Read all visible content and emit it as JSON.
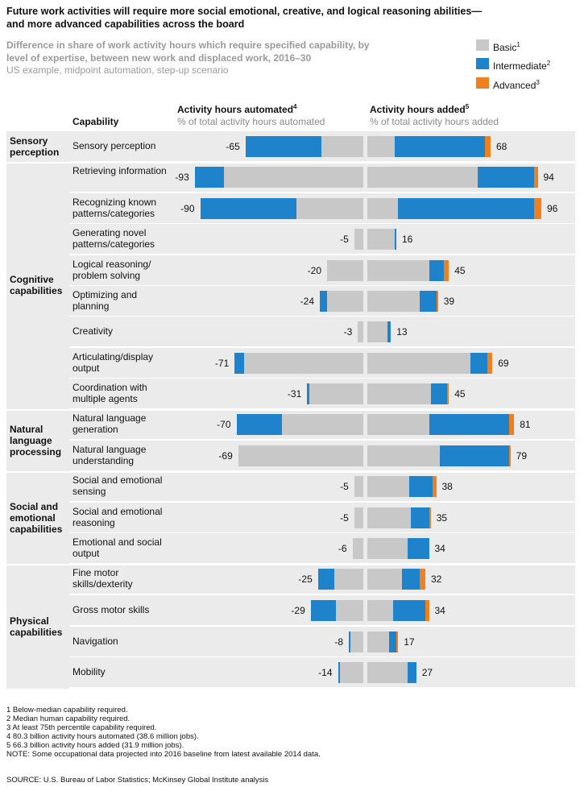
{
  "title": "Future work activities will require more social emotional, creative, and logical reasoning abilities— and more advanced capabilities across the board",
  "subtitle": "Difference in share of work activity hours which require specified capability, by level of expertise, between new work and displaced work, 2016–30",
  "subtitle_note": "US example, midpoint automation, step-up scenario",
  "legend": [
    {
      "name": "Basic",
      "sup": "1",
      "color": "#c8c8c8"
    },
    {
      "name": "Intermediate",
      "sup": "2",
      "color": "#1f83cc"
    },
    {
      "name": "Advanced",
      "sup": "3",
      "color": "#f0801e"
    }
  ],
  "headers": {
    "capability": "Capability",
    "automated": "Activity hours automated",
    "automated_sup": "4",
    "automated_sub": "% of total activity hours automated",
    "added": "Activity hours added",
    "added_sup": "5",
    "added_sub": "% of total activity hours added"
  },
  "categories": [
    {
      "name": "Sensory perception"
    },
    {
      "name": "Cognitive capabilities"
    },
    {
      "name": "Natural language processing"
    },
    {
      "name": "Social and emotional capabilities"
    },
    {
      "name": "Physical capabilities"
    }
  ],
  "chart_data": {
    "type": "bar",
    "orientation": "horizontal-diverging-stacked",
    "stack_order": [
      "Basic",
      "Intermediate",
      "Advanced"
    ],
    "rows": [
      {
        "category": "Sensory perception",
        "label": "Sensory perception",
        "automated": {
          "total": -65,
          "basic": -23,
          "intermediate": -42,
          "advanced": 0
        },
        "added": {
          "total": 68,
          "basic": 15,
          "intermediate": 50,
          "advanced": 3
        }
      },
      {
        "category": "Cognitive capabilities",
        "label": "Retrieving information",
        "automated": {
          "total": -93,
          "basic": -77,
          "intermediate": -16,
          "advanced": 0
        },
        "added": {
          "total": 94,
          "basic": 61,
          "intermediate": 31,
          "advanced": 2
        }
      },
      {
        "category": "Cognitive capabilities",
        "label": "Recognizing known patterns/categories",
        "automated": {
          "total": -90,
          "basic": -37,
          "intermediate": -53,
          "advanced": 0
        },
        "added": {
          "total": 96,
          "basic": 17,
          "intermediate": 75,
          "advanced": 4
        }
      },
      {
        "category": "Cognitive capabilities",
        "label": "Generating novel patterns/categories",
        "automated": {
          "total": -5,
          "basic": -5,
          "intermediate": 0,
          "advanced": 0
        },
        "added": {
          "total": 16,
          "basic": 15,
          "intermediate": 1,
          "advanced": 0
        }
      },
      {
        "category": "Cognitive capabilities",
        "label": "Logical reasoning/ problem solving",
        "automated": {
          "total": -20,
          "basic": -20,
          "intermediate": 0,
          "advanced": 0
        },
        "added": {
          "total": 45,
          "basic": 34,
          "intermediate": 8,
          "advanced": 3
        }
      },
      {
        "category": "Cognitive capabilities",
        "label": "Optimizing and planning",
        "automated": {
          "total": -24,
          "basic": -20,
          "intermediate": -4,
          "advanced": 0
        },
        "added": {
          "total": 39,
          "basic": 29,
          "intermediate": 9,
          "advanced": 1
        }
      },
      {
        "category": "Cognitive capabilities",
        "label": "Creativity",
        "automated": {
          "total": -3,
          "basic": -3,
          "intermediate": 0,
          "advanced": 0
        },
        "added": {
          "total": 13,
          "basic": 11,
          "intermediate": 2,
          "advanced": 0
        }
      },
      {
        "category": "Cognitive capabilities",
        "label": "Articulating/display output",
        "automated": {
          "total": -71,
          "basic": -66,
          "intermediate": -5,
          "advanced": 0
        },
        "added": {
          "total": 69,
          "basic": 57,
          "intermediate": 9,
          "advanced": 3
        }
      },
      {
        "category": "Cognitive capabilities",
        "label": "Coordination with multiple agents",
        "automated": {
          "total": -31,
          "basic": -30,
          "intermediate": -1,
          "advanced": 0
        },
        "added": {
          "total": 45,
          "basic": 35,
          "intermediate": 9,
          "advanced": 1
        }
      },
      {
        "category": "Natural language processing",
        "label": "Natural language generation",
        "automated": {
          "total": -70,
          "basic": -45,
          "intermediate": -25,
          "advanced": 0
        },
        "added": {
          "total": 81,
          "basic": 34,
          "intermediate": 44,
          "advanced": 3
        }
      },
      {
        "category": "Natural language processing",
        "label": "Natural language understanding",
        "automated": {
          "total": -69,
          "basic": -69,
          "intermediate": 0,
          "advanced": 0
        },
        "added": {
          "total": 79,
          "basic": 40,
          "intermediate": 38,
          "advanced": 1
        }
      },
      {
        "category": "Social and emotional capabilities",
        "label": "Social and emotional sensing",
        "automated": {
          "total": -5,
          "basic": -5,
          "intermediate": 0,
          "advanced": 0
        },
        "added": {
          "total": 38,
          "basic": 23,
          "intermediate": 13,
          "advanced": 2
        }
      },
      {
        "category": "Social and emotional capabilities",
        "label": "Social and emotional reasoning",
        "automated": {
          "total": -5,
          "basic": -5,
          "intermediate": 0,
          "advanced": 0
        },
        "added": {
          "total": 35,
          "basic": 24,
          "intermediate": 10,
          "advanced": 1
        }
      },
      {
        "category": "Social and emotional capabilities",
        "label": "Emotional and social output",
        "automated": {
          "total": -6,
          "basic": -6,
          "intermediate": 0,
          "advanced": 0
        },
        "added": {
          "total": 34,
          "basic": 22,
          "intermediate": 12,
          "advanced": 0
        }
      },
      {
        "category": "Physical capabilities",
        "label": "Fine motor skills/dexterity",
        "automated": {
          "total": -25,
          "basic": -16,
          "intermediate": -9,
          "advanced": 0
        },
        "added": {
          "total": 32,
          "basic": 19,
          "intermediate": 10,
          "advanced": 3
        }
      },
      {
        "category": "Physical capabilities",
        "label": "Gross motor skills",
        "automated": {
          "total": -29,
          "basic": -15,
          "intermediate": -14,
          "advanced": 0
        },
        "added": {
          "total": 34,
          "basic": 14,
          "intermediate": 18,
          "advanced": 2
        }
      },
      {
        "category": "Physical capabilities",
        "label": "Navigation",
        "automated": {
          "total": -8,
          "basic": -7,
          "intermediate": -1,
          "advanced": 0
        },
        "added": {
          "total": 17,
          "basic": 12,
          "intermediate": 4,
          "advanced": 1
        }
      },
      {
        "category": "Physical capabilities",
        "label": "Mobility",
        "automated": {
          "total": -14,
          "basic": -13,
          "intermediate": -1,
          "advanced": 0
        },
        "added": {
          "total": 27,
          "basic": 22,
          "intermediate": 5,
          "advanced": 0
        }
      }
    ]
  },
  "footnotes": [
    "1  Below-median capability required.",
    "2  Median human capability required.",
    "3  At least 75th percentile capability required.",
    "4  80.3 billion activity hours automated (38.6 million jobs).",
    "5  66.3 billion  activity hours added (31.9 million jobs).",
    "NOTE: Some occupational data projected into 2016 baseline from latest available 2014 data."
  ],
  "source": "SOURCE:  U.S. Bureau of Labor Statistics; McKinsey Global Institute analysis"
}
